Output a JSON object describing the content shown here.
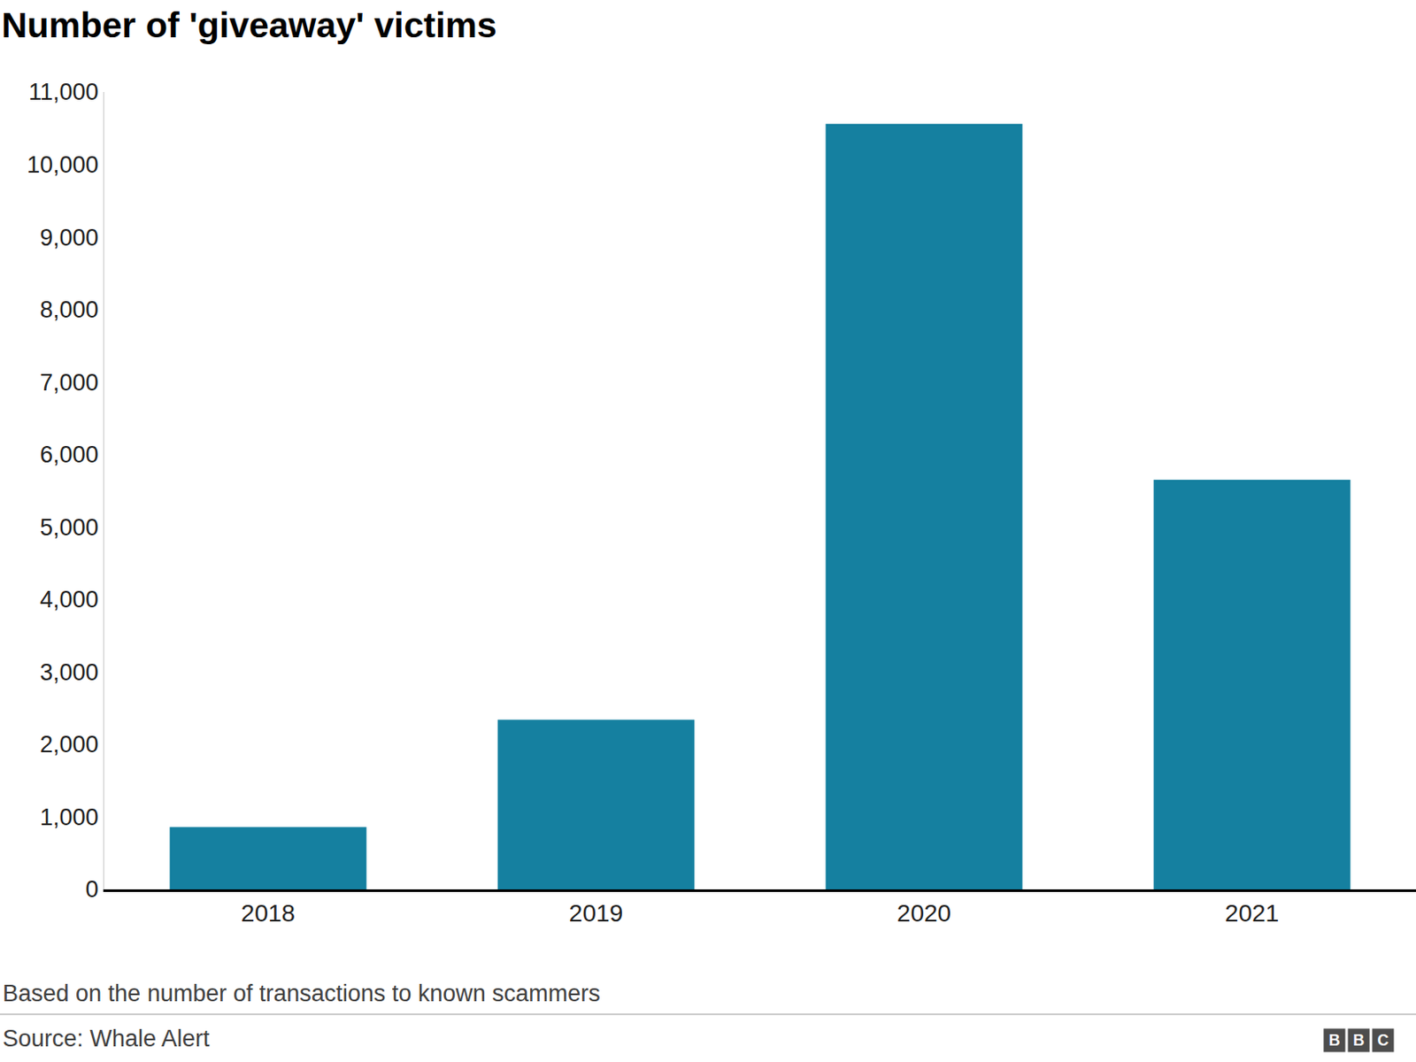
{
  "chart_data": {
    "type": "bar",
    "title": "Number of 'giveaway' victims",
    "categories": [
      "2018",
      "2019",
      "2020",
      "2021"
    ],
    "values": [
      860,
      2340,
      10560,
      5650
    ],
    "color": "#1580a0",
    "ylim": [
      0,
      11000
    ],
    "yticks": [
      0,
      {
        "value": 1000,
        "label": "1,000"
      },
      {
        "value": 2000,
        "label": "2,000"
      },
      {
        "value": 3000,
        "label": "3,000"
      },
      {
        "value": 4000,
        "label": "4,000"
      },
      {
        "value": 5000,
        "label": "5,000"
      },
      {
        "value": 6000,
        "label": "6,000"
      },
      {
        "value": 7000,
        "label": "7,000"
      },
      {
        "value": 8000,
        "label": "8,000"
      },
      {
        "value": 9000,
        "label": "9,000"
      },
      {
        "value": 10000,
        "label": "10,000"
      },
      {
        "value": 11000,
        "label": "11,000"
      }
    ],
    "grid": false,
    "caption": "Based on the number of transactions to known scammers",
    "source": "Source: Whale Alert",
    "logo": "BBC"
  }
}
